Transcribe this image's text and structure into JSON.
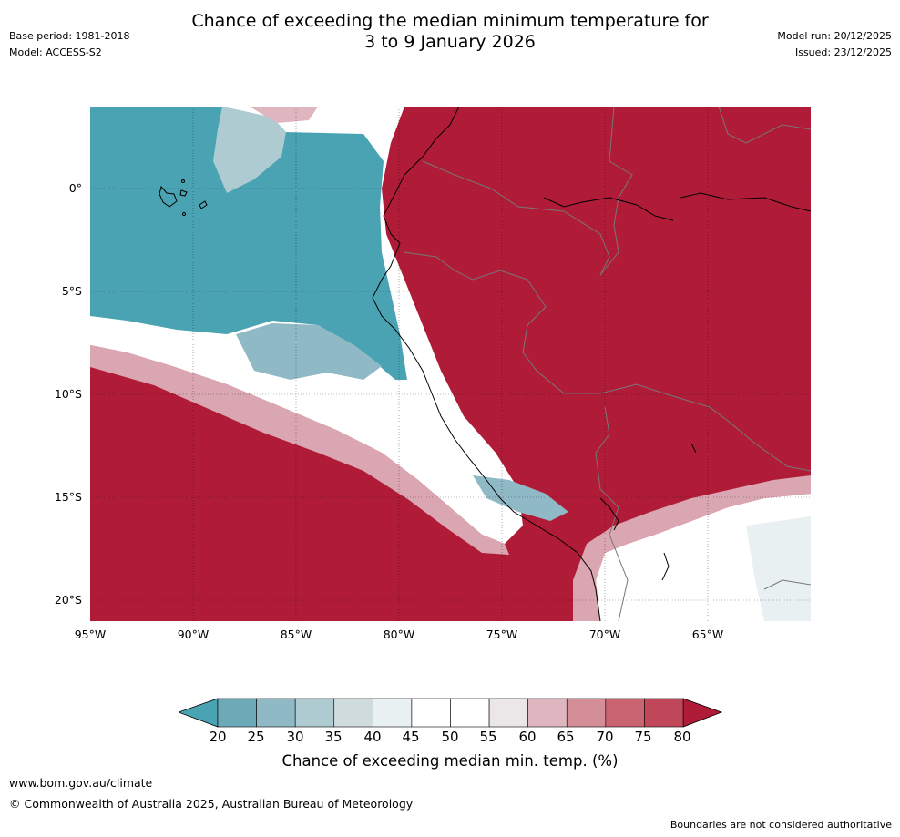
{
  "title": {
    "line1": "Chance of exceeding the median minimum temperature for",
    "line2": "3 to 9 January 2026"
  },
  "meta": {
    "base_period": "Base period: 1981-2018",
    "model": "Model: ACCESS-S2",
    "model_run": "Model run: 20/12/2025",
    "issued": "Issued: 23/12/2025"
  },
  "axes": {
    "lat_labels": [
      "0°",
      "5°S",
      "10°S",
      "15°S",
      "20°S"
    ],
    "lon_labels": [
      "95°W",
      "90°W",
      "85°W",
      "80°W",
      "75°W",
      "70°W",
      "65°W"
    ]
  },
  "colorbar": {
    "ticks": [
      "20",
      "25",
      "30",
      "35",
      "40",
      "45",
      "50",
      "55",
      "60",
      "65",
      "70",
      "75",
      "80"
    ],
    "colors": [
      "#4aa3b3",
      "#6daab7",
      "#8fb9c5",
      "#aecbd1",
      "#cfdbdd",
      "#e9f0f2",
      "#ffffff",
      "#ffffff",
      "#ebe6e8",
      "#dfb6bf",
      "#d48e98",
      "#c96470",
      "#c0475a",
      "#b01c38"
    ],
    "label": "Chance of exceeding median min. temp. (%)"
  },
  "map_colors": {
    "cool": "#4aa3b3",
    "warm": "#b01c38",
    "neutral": "#ffffff"
  },
  "footer": {
    "url": "www.bom.gov.au/climate",
    "copyright": "© Commonwealth of Australia 2025, Australian Bureau of Meteorology",
    "note": "Boundaries are not considered authoritative"
  }
}
